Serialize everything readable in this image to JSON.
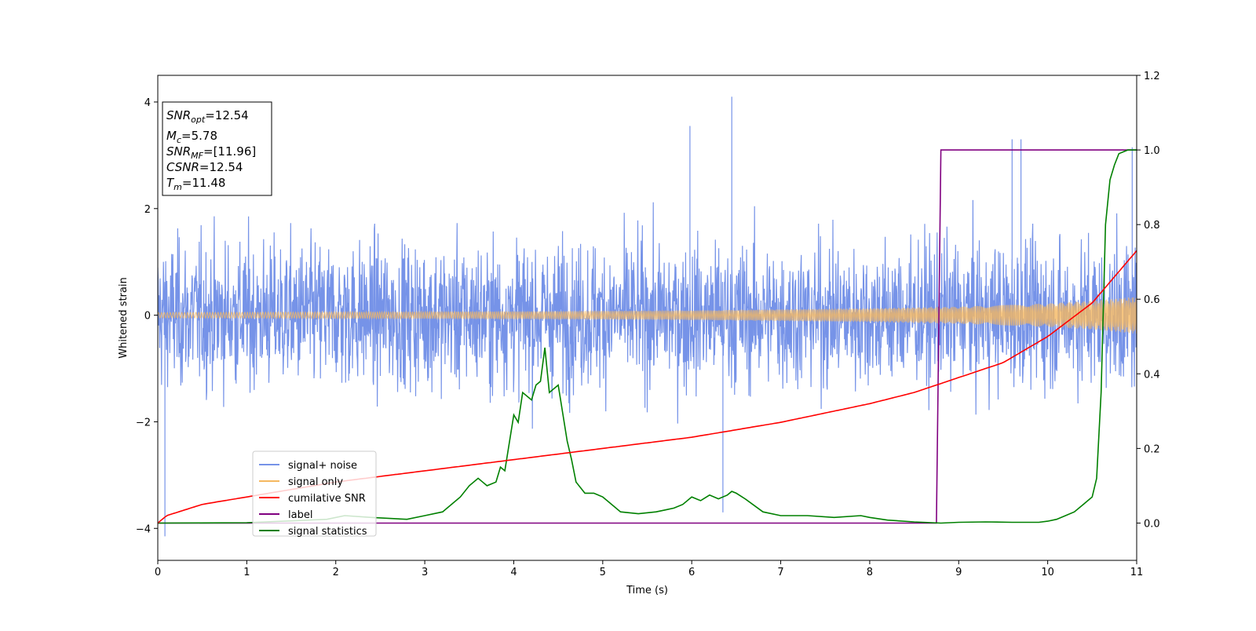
{
  "chart_data": {
    "type": "line",
    "title": "",
    "xlabel": "Time (s)",
    "ylabel": "Whitened strain",
    "xlim": [
      0,
      11
    ],
    "ylim": [
      -4.6,
      4.5
    ],
    "y2lim": [
      -0.1,
      1.2
    ],
    "xticks": [
      0,
      1,
      2,
      3,
      4,
      5,
      6,
      7,
      8,
      9,
      10,
      11
    ],
    "yticks": [
      -4,
      -2,
      0,
      2,
      4
    ],
    "y2ticks": [
      "0.0",
      "0.2",
      "0.4",
      "0.6",
      "0.8",
      "1.0",
      "1.2"
    ],
    "grid": false,
    "legend_position": "lower-left",
    "stats_box": {
      "line1_var": "SNR",
      "line1_sub": "opt",
      "line1_val": "=12.54",
      "line2_var": "M",
      "line2_sub": "c",
      "line2_val": "=5.78",
      "line3_var": "SNR",
      "line3_sub": "MF",
      "line3_val": "=[11.96]",
      "line4_var": "CSNR",
      "line4_val": "=12.54",
      "line5_var": "T",
      "line5_sub": "m",
      "line5_val": "=11.48"
    },
    "series": [
      {
        "name": "signal+ noise",
        "axis": "left",
        "color": "#7693e8",
        "description_stats": {
          "envelope_typ": 2.2,
          "peaks": [
            [
              0.08,
              -4.15
            ],
            [
              6.45,
              4.1
            ],
            [
              5.98,
              3.55
            ],
            [
              9.6,
              3.3
            ],
            [
              9.7,
              3.3
            ],
            [
              6.35,
              -3.7
            ],
            [
              10.95,
              3.15
            ]
          ]
        }
      },
      {
        "name": "signal only",
        "axis": "left",
        "color": "#f5b860",
        "amplitude": {
          "x": [
            0,
            2,
            4,
            6,
            8,
            9,
            10,
            10.5,
            11
          ],
          "y": [
            0.05,
            0.06,
            0.07,
            0.09,
            0.13,
            0.16,
            0.22,
            0.27,
            0.35
          ]
        }
      },
      {
        "name": "cumilative SNR",
        "axis": "right",
        "color": "#ff0000",
        "x": [
          0,
          0.1,
          0.5,
          1,
          2,
          3,
          4,
          5,
          6,
          7,
          8,
          8.5,
          9,
          9.5,
          10,
          10.5,
          11
        ],
        "y": [
          0.0,
          0.02,
          0.05,
          0.07,
          0.11,
          0.14,
          0.17,
          0.2,
          0.23,
          0.27,
          0.32,
          0.35,
          0.39,
          0.43,
          0.5,
          0.59,
          0.73
        ]
      },
      {
        "name": "label",
        "axis": "right",
        "color": "#800080",
        "x": [
          0,
          8.75,
          8.8,
          11
        ],
        "y": [
          0,
          0,
          1,
          1
        ]
      },
      {
        "name": "signal statistics",
        "axis": "right",
        "color": "#008000",
        "x": [
          0,
          1,
          1.9,
          2.1,
          2.4,
          2.8,
          3.0,
          3.2,
          3.4,
          3.5,
          3.6,
          3.65,
          3.7,
          3.8,
          3.85,
          3.9,
          4.0,
          4.05,
          4.1,
          4.2,
          4.25,
          4.3,
          4.35,
          4.4,
          4.5,
          4.6,
          4.65,
          4.7,
          4.8,
          4.9,
          5.0,
          5.1,
          5.2,
          5.4,
          5.6,
          5.7,
          5.8,
          5.9,
          6.0,
          6.1,
          6.2,
          6.3,
          6.4,
          6.45,
          6.5,
          6.6,
          6.8,
          7.0,
          7.3,
          7.6,
          7.9,
          8.0,
          8.2,
          8.5,
          8.8,
          9.0,
          9.3,
          9.6,
          9.9,
          10.0,
          10.1,
          10.2,
          10.3,
          10.4,
          10.5,
          10.55,
          10.6,
          10.65,
          10.7,
          10.75,
          10.8,
          10.9,
          11.0
        ],
        "y": [
          0.0,
          0.001,
          0.01,
          0.02,
          0.015,
          0.01,
          0.02,
          0.03,
          0.07,
          0.1,
          0.12,
          0.11,
          0.1,
          0.11,
          0.15,
          0.14,
          0.29,
          0.27,
          0.35,
          0.33,
          0.37,
          0.38,
          0.47,
          0.35,
          0.37,
          0.22,
          0.17,
          0.11,
          0.08,
          0.08,
          0.07,
          0.05,
          0.03,
          0.025,
          0.03,
          0.035,
          0.04,
          0.05,
          0.07,
          0.06,
          0.075,
          0.065,
          0.075,
          0.085,
          0.08,
          0.065,
          0.03,
          0.02,
          0.02,
          0.015,
          0.02,
          0.015,
          0.008,
          0.003,
          0.0,
          0.002,
          0.003,
          0.002,
          0.002,
          0.005,
          0.01,
          0.02,
          0.03,
          0.05,
          0.07,
          0.12,
          0.35,
          0.8,
          0.92,
          0.96,
          0.99,
          1.0,
          1.0
        ]
      }
    ]
  }
}
